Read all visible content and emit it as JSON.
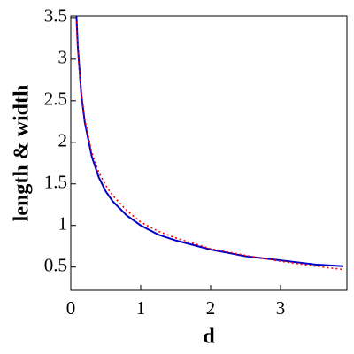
{
  "chart_data": {
    "type": "line",
    "xlabel": "d",
    "ylabel": "length & width",
    "x": [
      0.08,
      0.1,
      0.15,
      0.2,
      0.3,
      0.4,
      0.5,
      0.6,
      0.8,
      1,
      1.25,
      1.5,
      2,
      2.5,
      3,
      3.5,
      3.9
    ],
    "series": [
      {
        "color": "#0000cc",
        "style": "solid",
        "values": [
          3.54,
          3.16,
          2.58,
          2.24,
          1.83,
          1.58,
          1.41,
          1.29,
          1.12,
          1.0,
          0.89,
          0.82,
          0.71,
          0.63,
          0.58,
          0.53,
          0.51
        ]
      },
      {
        "color": "#ff0000",
        "style": "dotted",
        "values": [
          3.45,
          3.1,
          2.6,
          2.28,
          1.88,
          1.64,
          1.48,
          1.36,
          1.18,
          1.04,
          0.93,
          0.85,
          0.72,
          0.64,
          0.57,
          0.51,
          0.47
        ]
      }
    ],
    "xlim": [
      0,
      3.95
    ],
    "ylim": [
      0.22,
      3.52
    ],
    "xticks": [
      0,
      1,
      2,
      3
    ],
    "yticks": [
      0.5,
      1,
      1.5,
      2,
      2.5,
      3,
      3.5
    ]
  }
}
